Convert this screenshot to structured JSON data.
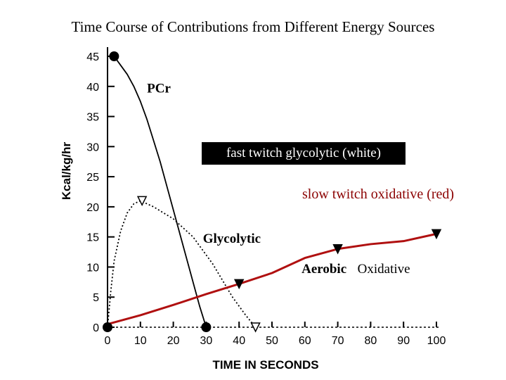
{
  "slide": {
    "title": "Time Course of Contributions from Different Energy Sources"
  },
  "notes": {
    "fast_twitch": "fast twitch glycolytic (white)",
    "slow_twitch": "slow twitch oxidative (red)",
    "oxidative": "Oxidative"
  },
  "chart_data": {
    "type": "line",
    "title": "",
    "xlabel": "TIME IN SECONDS",
    "ylabel": "Kcal/kg/hr",
    "xlim": [
      0,
      100
    ],
    "ylim": [
      0,
      45
    ],
    "x_ticks": [
      0,
      10,
      20,
      30,
      40,
      50,
      60,
      70,
      80,
      90,
      100
    ],
    "y_ticks": [
      0,
      5,
      10,
      15,
      20,
      25,
      30,
      35,
      40,
      45
    ],
    "grid": false,
    "series": [
      {
        "name": "PCr",
        "color": "#000000",
        "style": "solid",
        "marker": "circle",
        "x": [
          2,
          4,
          6,
          8,
          10,
          12,
          14,
          16,
          18,
          20,
          22,
          24,
          26,
          28,
          30
        ],
        "y": [
          45,
          43.5,
          42,
          40,
          37.5,
          34.5,
          31,
          27.5,
          23.5,
          19.5,
          15.5,
          11.5,
          7.5,
          3.5,
          0
        ]
      },
      {
        "name": "Glycolytic",
        "color": "#000000",
        "style": "dotted",
        "marker": "triangle-down",
        "x": [
          0,
          1,
          2,
          4,
          6,
          8,
          10,
          14,
          20,
          26,
          32,
          38,
          42,
          45
        ],
        "y": [
          0,
          6,
          11,
          16,
          19,
          20.5,
          21,
          20,
          18,
          15,
          10.5,
          5,
          2,
          0
        ]
      },
      {
        "name": "Aerobic",
        "color": "#b01010",
        "style": "solid",
        "marker": "triangle-down",
        "x": [
          0,
          10,
          20,
          30,
          40,
          50,
          60,
          70,
          80,
          90,
          100
        ],
        "y": [
          0.5,
          2,
          3.7,
          5.5,
          7.2,
          9,
          11.5,
          13,
          13.8,
          14.3,
          15.5
        ]
      }
    ],
    "markers": [
      {
        "series": "PCr",
        "shape": "circle",
        "x": 2,
        "y": 45
      },
      {
        "series": "PCr",
        "shape": "circle",
        "x": 30,
        "y": 0
      },
      {
        "series": "Aerobic",
        "shape": "circle",
        "x": 0,
        "y": 0
      },
      {
        "series": "Glycolytic",
        "shape": "triangle-down",
        "x": 10.5,
        "y": 21
      },
      {
        "series": "Glycolytic",
        "shape": "triangle-down",
        "x": 45,
        "y": 0
      },
      {
        "series": "Aerobic",
        "shape": "triangle-down",
        "x": 40,
        "y": 7.2
      },
      {
        "series": "Aerobic",
        "shape": "triangle-down",
        "x": 70,
        "y": 13
      },
      {
        "series": "Aerobic",
        "shape": "triangle-down",
        "x": 100,
        "y": 15.5
      }
    ],
    "annotations": [
      {
        "text": "PCr",
        "x": 12,
        "y": 39
      },
      {
        "text": "Glycolytic",
        "x": 29,
        "y": 14
      },
      {
        "text": "Aerobic",
        "x": 59,
        "y": 9
      }
    ]
  }
}
